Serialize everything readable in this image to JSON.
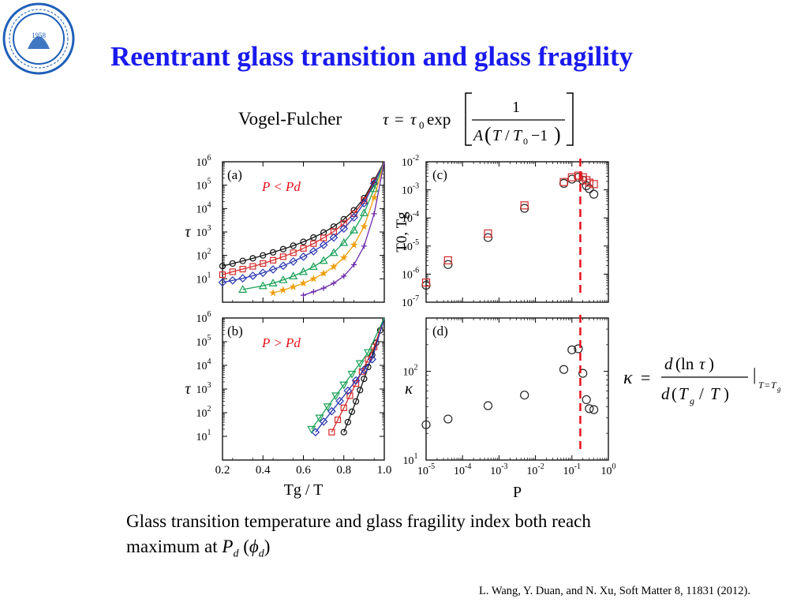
{
  "slide": {
    "title": "Reentrant glass transition and glass fragility",
    "logo_year": "1958",
    "vogel_fulcher_label": "Vogel-Fulcher",
    "caption_line1": "Glass transition temperature and glass fragility index both reach",
    "caption_line2_prefix": "maximum at ",
    "citation": "L. Wang, Y. Duan, and N. Xu, Soft Matter 8, 11831 (2012)."
  },
  "colors": {
    "title": "#1a1aee",
    "dashed_line": "#e8101a",
    "annotation": "#e8101a",
    "series": [
      "#111111",
      "#d42a2a",
      "#2a37b0",
      "#1aa158",
      "#f0a010",
      "#6a2aa8"
    ]
  },
  "chart_data": [
    {
      "type": "line",
      "panel": "(a)",
      "annotation": "P < Pd",
      "xlabel": "",
      "ylabel": "τ",
      "xlim": [
        0.2,
        1.0
      ],
      "ylim": [
        1,
        1000000
      ],
      "yscale": "log",
      "x_ticks": [
        0.2,
        0.4,
        0.6,
        0.8,
        1.0
      ],
      "y_tick_labels": [
        "10^1",
        "10^2",
        "10^3",
        "10^4",
        "10^5",
        "10^6"
      ],
      "series": [
        {
          "marker": "circle",
          "x": [
            0.2,
            0.25,
            0.3,
            0.35,
            0.4,
            0.45,
            0.5,
            0.55,
            0.6,
            0.65,
            0.7,
            0.75,
            0.8,
            0.85,
            0.9,
            0.95
          ],
          "y": [
            35,
            45,
            58,
            75,
            100,
            135,
            185,
            260,
            380,
            580,
            950,
            1700,
            3500,
            8500,
            28000,
            160000
          ]
        },
        {
          "marker": "square",
          "x": [
            0.2,
            0.25,
            0.3,
            0.35,
            0.4,
            0.45,
            0.5,
            0.55,
            0.6,
            0.65,
            0.7,
            0.75,
            0.8,
            0.85,
            0.9,
            0.95
          ],
          "y": [
            15,
            20,
            26,
            34,
            45,
            62,
            88,
            130,
            200,
            320,
            560,
            1050,
            2300,
            6000,
            22000,
            140000
          ]
        },
        {
          "marker": "diamond",
          "x": [
            0.2,
            0.25,
            0.3,
            0.35,
            0.4,
            0.45,
            0.5,
            0.55,
            0.6,
            0.65,
            0.7,
            0.75,
            0.8,
            0.85,
            0.9,
            0.95
          ],
          "y": [
            7,
            8.5,
            10.5,
            13.5,
            18,
            25,
            36,
            55,
            88,
            150,
            280,
            580,
            1400,
            4200,
            17000,
            120000
          ]
        },
        {
          "marker": "triangle-up",
          "x": [
            0.3,
            0.4,
            0.45,
            0.5,
            0.55,
            0.6,
            0.65,
            0.7,
            0.75,
            0.8,
            0.85,
            0.9,
            0.95
          ],
          "y": [
            3.5,
            5,
            6.5,
            9,
            13,
            20,
            33,
            60,
            130,
            350,
            1200,
            6500,
            70000
          ]
        },
        {
          "marker": "star",
          "x": [
            0.45,
            0.5,
            0.55,
            0.6,
            0.65,
            0.7,
            0.75,
            0.8,
            0.85,
            0.9,
            0.95
          ],
          "y": [
            2.5,
            3.3,
            4.5,
            6.5,
            10,
            17,
            33,
            80,
            280,
            1700,
            30000
          ]
        },
        {
          "marker": "plus",
          "x": [
            0.6,
            0.65,
            0.7,
            0.75,
            0.8,
            0.85,
            0.9,
            0.95
          ],
          "y": [
            2,
            2.8,
            4,
            6.5,
            13,
            40,
            250,
            6000
          ]
        }
      ]
    },
    {
      "type": "line",
      "panel": "(b)",
      "annotation": "P > Pd",
      "xlabel": "Tg / T",
      "ylabel": "τ",
      "xlim": [
        0.2,
        1.0
      ],
      "ylim": [
        1,
        1000000
      ],
      "yscale": "log",
      "x_ticks": [
        0.2,
        0.4,
        0.6,
        0.8,
        1.0
      ],
      "x_tick_labels": [
        "0.2",
        "0.4",
        "0.6",
        "0.8",
        "1.0"
      ],
      "y_tick_labels": [
        "10^1",
        "10^2",
        "10^3",
        "10^4",
        "10^5",
        "10^6"
      ],
      "series": [
        {
          "marker": "circle",
          "x": [
            0.8,
            0.82,
            0.84,
            0.86,
            0.88,
            0.9,
            0.92,
            0.94,
            0.96,
            0.98
          ],
          "y": [
            15,
            40,
            110,
            300,
            900,
            2700,
            8500,
            27000,
            90000,
            300000
          ]
        },
        {
          "marker": "square",
          "x": [
            0.74,
            0.77,
            0.8,
            0.83,
            0.86,
            0.89,
            0.92,
            0.95
          ],
          "y": [
            15,
            50,
            160,
            520,
            1700,
            5500,
            18000,
            60000
          ]
        },
        {
          "marker": "diamond",
          "x": [
            0.66,
            0.7,
            0.74,
            0.78,
            0.82,
            0.86,
            0.9,
            0.94
          ],
          "y": [
            15,
            42,
            115,
            310,
            850,
            2300,
            6500,
            18000
          ]
        },
        {
          "marker": "triangle-down",
          "x": [
            0.64,
            0.68,
            0.72,
            0.76,
            0.8,
            0.84,
            0.88,
            0.92
          ],
          "y": [
            20,
            60,
            180,
            520,
            1500,
            4300,
            12000,
            35000
          ]
        }
      ]
    },
    {
      "type": "scatter",
      "panel": "(c)",
      "xlabel": "",
      "ylabel": "T0, Tg",
      "xscale": "log",
      "yscale": "log",
      "xlim": [
        1e-05,
        1
      ],
      "ylim": [
        1e-07,
        0.01
      ],
      "y_tick_labels": [
        "10^-7",
        "10^-6",
        "10^-5",
        "10^-4",
        "10^-3",
        "10^-2"
      ],
      "series": [
        {
          "marker": "circle",
          "x": [
            1e-05,
            4e-05,
            0.0005,
            0.005,
            0.06,
            0.1,
            0.15,
            0.2,
            0.25,
            0.3,
            0.4
          ],
          "y": [
            4e-07,
            2.2e-06,
            2e-05,
            0.00022,
            0.0017,
            0.0024,
            0.0028,
            0.0022,
            0.0014,
            0.0011,
            0.0007
          ]
        },
        {
          "marker": "square",
          "x": [
            1e-05,
            4e-05,
            0.0005,
            0.005,
            0.06,
            0.1,
            0.15,
            0.2,
            0.25,
            0.3,
            0.4
          ],
          "y": [
            5e-07,
            3.1e-06,
            2.8e-05,
            0.00028,
            0.0019,
            0.0028,
            0.0032,
            0.0028,
            0.0022,
            0.0018,
            0.0016
          ]
        }
      ],
      "vline": 0.17
    },
    {
      "type": "scatter",
      "panel": "(d)",
      "xlabel": "P",
      "ylabel": "κ",
      "xscale": "log",
      "yscale": "log",
      "xlim": [
        1e-05,
        1
      ],
      "ylim": [
        10,
        400
      ],
      "x_tick_labels": [
        "10^-5",
        "10^-4",
        "10^-3",
        "10^-2",
        "10^-1",
        "10^0"
      ],
      "y_tick_labels": [
        "10^1",
        "10^2"
      ],
      "series": [
        {
          "marker": "circle",
          "x": [
            1e-05,
            4e-05,
            0.0005,
            0.005,
            0.06,
            0.1,
            0.15,
            0.2,
            0.25,
            0.3,
            0.4
          ],
          "y": [
            25,
            29,
            41,
            54,
            105,
            175,
            180,
            95,
            48,
            38,
            37
          ]
        }
      ],
      "vline": 0.17
    }
  ]
}
